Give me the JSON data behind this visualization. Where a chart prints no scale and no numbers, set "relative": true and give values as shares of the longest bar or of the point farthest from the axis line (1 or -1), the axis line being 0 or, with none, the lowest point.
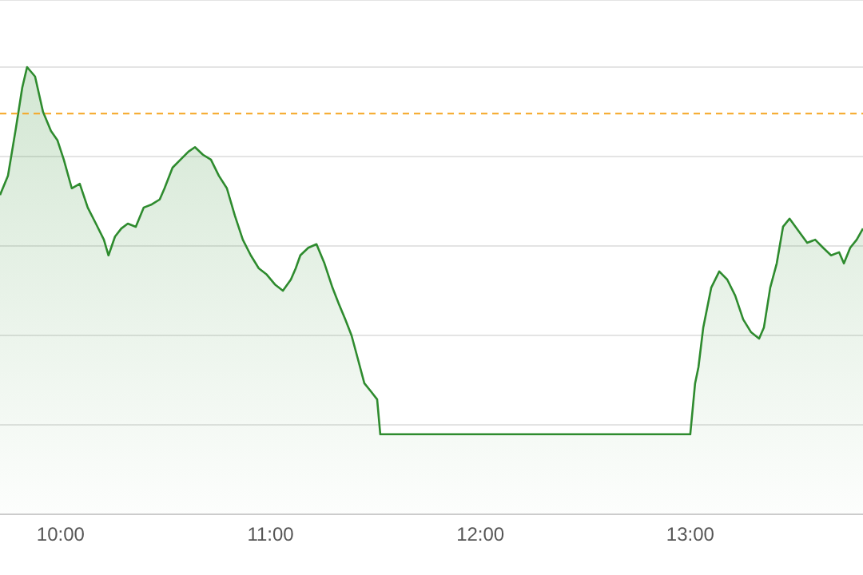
{
  "chart_data": {
    "type": "area",
    "relative": true,
    "grid": "y",
    "x": [
      9.711,
      9.749,
      9.787,
      9.817,
      9.84,
      9.878,
      9.916,
      9.954,
      9.985,
      10.015,
      10.053,
      10.091,
      10.129,
      10.168,
      10.206,
      10.228,
      10.259,
      10.289,
      10.32,
      10.358,
      10.396,
      10.434,
      10.472,
      10.495,
      10.533,
      10.571,
      10.609,
      10.64,
      10.678,
      10.716,
      10.754,
      10.792,
      10.83,
      10.868,
      10.906,
      10.944,
      10.982,
      11.021,
      11.059,
      11.097,
      11.12,
      11.142,
      11.18,
      11.219,
      11.257,
      11.295,
      11.325,
      11.356,
      11.386,
      11.417,
      11.447,
      11.478,
      11.508,
      11.523,
      13.0,
      13.023,
      13.039,
      13.062,
      13.1,
      13.138,
      13.176,
      13.214,
      13.252,
      13.29,
      13.328,
      13.351,
      13.381,
      13.412,
      13.442,
      13.473,
      13.518,
      13.557,
      13.595,
      13.633,
      13.671,
      13.709,
      13.732,
      13.762,
      13.793,
      13.823
    ],
    "series": [
      {
        "color": "#2e8b2e",
        "values": [
          0.714,
          0.757,
          0.864,
          0.954,
          1.0,
          0.979,
          0.9,
          0.857,
          0.836,
          0.793,
          0.729,
          0.739,
          0.686,
          0.65,
          0.614,
          0.579,
          0.621,
          0.639,
          0.65,
          0.643,
          0.686,
          0.693,
          0.704,
          0.729,
          0.775,
          0.793,
          0.811,
          0.821,
          0.804,
          0.793,
          0.757,
          0.729,
          0.668,
          0.614,
          0.579,
          0.55,
          0.536,
          0.514,
          0.5,
          0.525,
          0.55,
          0.579,
          0.596,
          0.604,
          0.561,
          0.507,
          0.471,
          0.436,
          0.4,
          0.346,
          0.293,
          0.275,
          0.257,
          0.179,
          0.179,
          0.293,
          0.329,
          0.418,
          0.507,
          0.543,
          0.525,
          0.489,
          0.436,
          0.407,
          0.393,
          0.418,
          0.507,
          0.561,
          0.643,
          0.661,
          0.632,
          0.607,
          0.614,
          0.596,
          0.579,
          0.586,
          0.561,
          0.596,
          0.614,
          0.639
        ]
      }
    ],
    "xlim": [
      9.711,
      13.823
    ],
    "xticks": [
      {
        "value": 10,
        "label": "10:00"
      },
      {
        "value": 11,
        "label": "11:00"
      },
      {
        "value": 12,
        "label": "12:00"
      },
      {
        "value": 13,
        "label": "13:00"
      }
    ],
    "ref_lines": [
      {
        "axis": "y",
        "value": 0.896,
        "color": "#f5a623",
        "line_style": "dashed"
      }
    ]
  }
}
